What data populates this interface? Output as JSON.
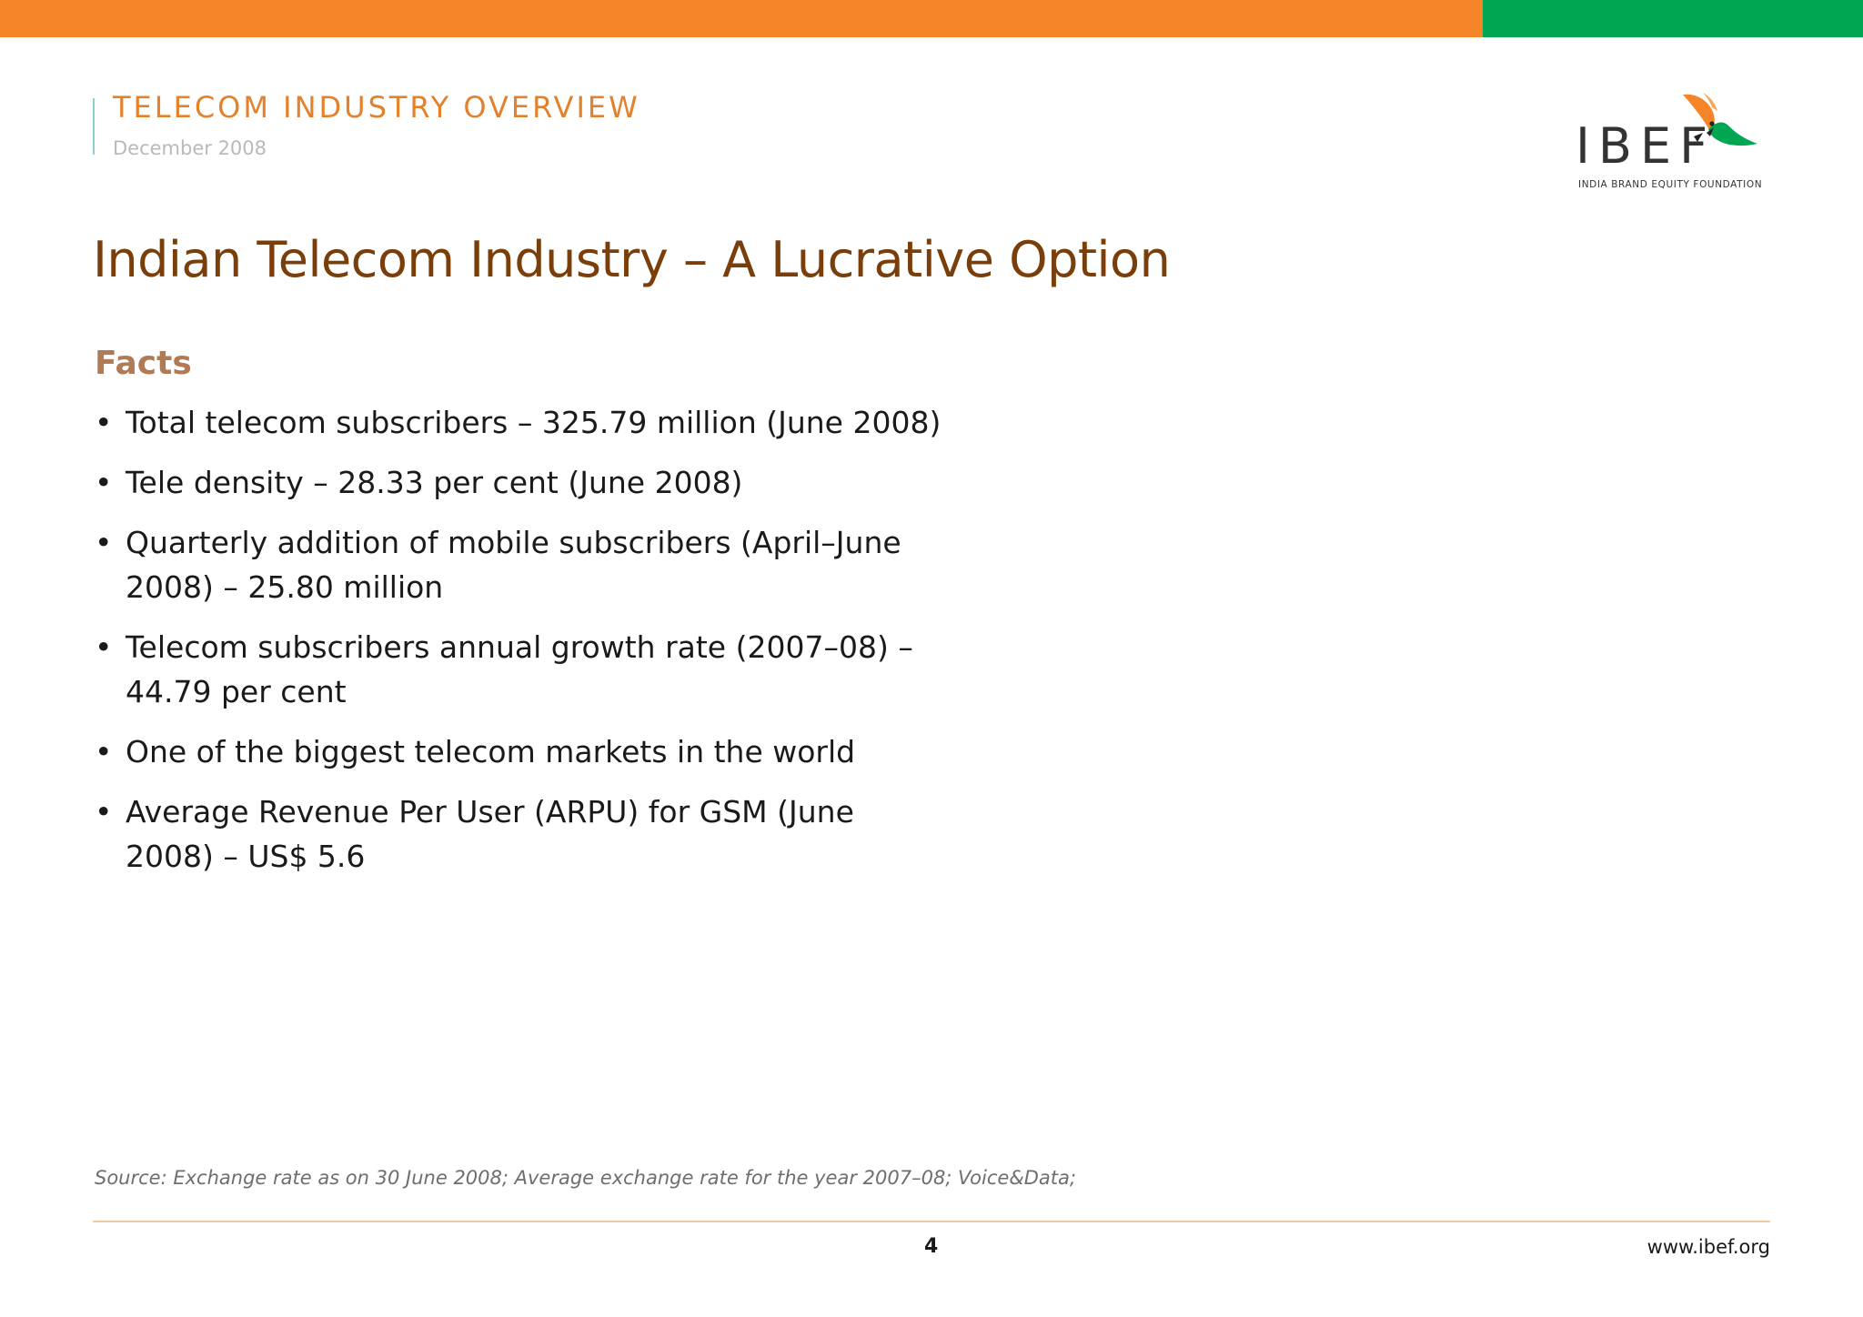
{
  "colors": {
    "band_orange": "#f68428",
    "band_green": "#00a651",
    "title_brown": "#7a3e0a",
    "header_orange": "#e4812b",
    "facts_heading": "#b07a55"
  },
  "header": {
    "doc_title": "TELECOM INDUSTRY OVERVIEW",
    "date": "December 2008"
  },
  "logo": {
    "text": "IBEF",
    "tagline": "INDIA BRAND EQUITY FOUNDATION",
    "icon": "bird-icon"
  },
  "page": {
    "title": "Indian Telecom Industry – A Lucrative Option",
    "facts_heading": "Facts",
    "facts": [
      "Total telecom subscribers – 325.79 million (June 2008)",
      "Tele density – 28.33 per cent (June 2008)",
      "Quarterly addition of mobile subscribers (April–June 2008) – 25.80 million",
      "Telecom subscribers annual growth rate (2007–08) – 44.79 per cent",
      "One of the biggest telecom markets in the world",
      "Average Revenue Per User (ARPU) for GSM (June 2008) – US$ 5.6"
    ]
  },
  "footer": {
    "source": "Source: Exchange rate as on 30 June 2008; Average exchange rate for the year 2007–08; Voice&Data;",
    "page_number": "4",
    "url": "www.ibef.org"
  }
}
